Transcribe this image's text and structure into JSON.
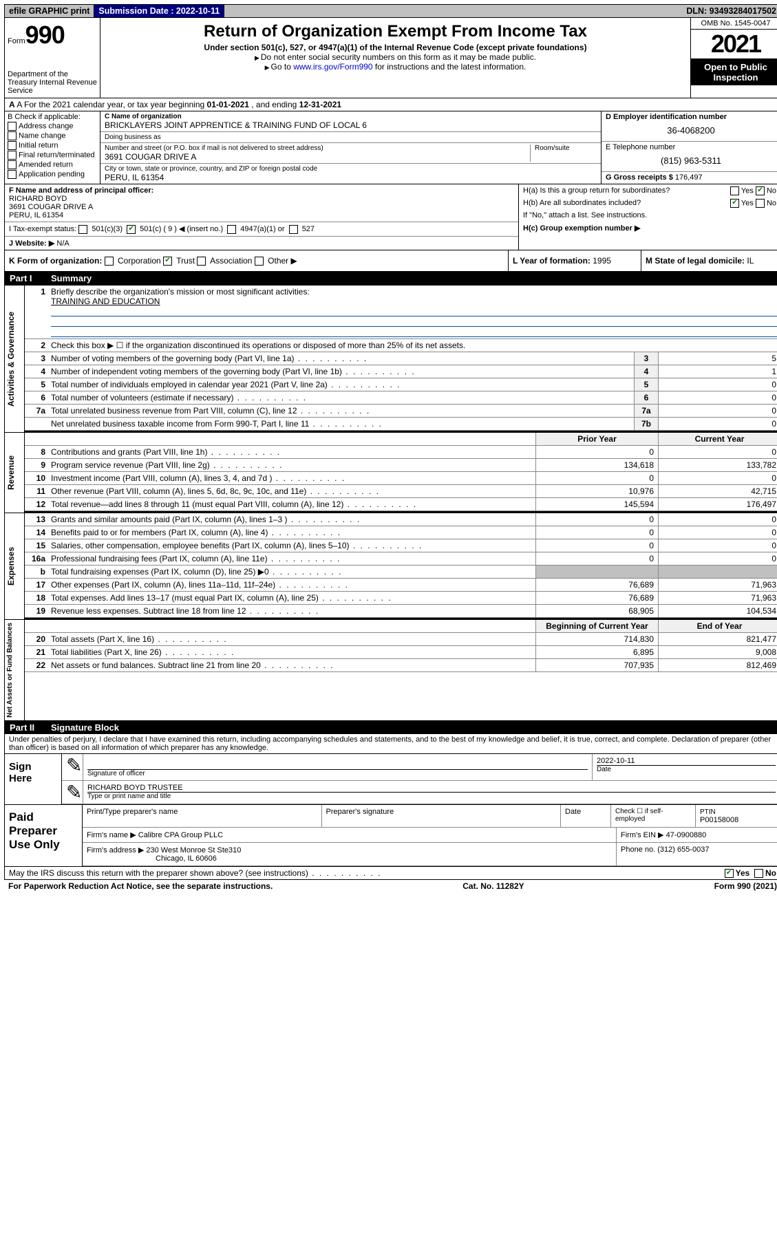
{
  "topbar": {
    "efile": "efile GRAPHIC print",
    "submission_label": "Submission Date : ",
    "submission_date": "2022-10-11",
    "dln_label": "DLN: ",
    "dln": "93493284017502"
  },
  "header": {
    "form_prefix": "Form",
    "form_number": "990",
    "dept": "Department of the Treasury Internal Revenue Service",
    "title": "Return of Organization Exempt From Income Tax",
    "subtitle": "Under section 501(c), 527, or 4947(a)(1) of the Internal Revenue Code (except private foundations)",
    "instr1": "Do not enter social security numbers on this form as it may be made public.",
    "instr2_pre": "Go to ",
    "instr2_link": "www.irs.gov/Form990",
    "instr2_post": " for instructions and the latest information.",
    "omb": "OMB No. 1545-0047",
    "year": "2021",
    "open": "Open to Public Inspection"
  },
  "row_a": {
    "prefix": "A For the 2021 calendar year, or tax year beginning ",
    "begin": "01-01-2021",
    "mid": " , and ending ",
    "end": "12-31-2021"
  },
  "col_b": {
    "label": "B Check if applicable:",
    "items": [
      "Address change",
      "Name change",
      "Initial return",
      "Final return/terminated",
      "Amended return",
      "Application pending"
    ]
  },
  "col_c": {
    "name_label": "C Name of organization",
    "name": "BRICKLAYERS JOINT APPRENTICE & TRAINING FUND OF LOCAL 6",
    "dba_label": "Doing business as",
    "dba": "",
    "street_label": "Number and street (or P.O. box if mail is not delivered to street address)",
    "room_label": "Room/suite",
    "street": "3691 COUGAR DRIVE A",
    "city_label": "City or town, state or province, country, and ZIP or foreign postal code",
    "city": "PERU, IL  61354"
  },
  "col_d": {
    "ein_label": "D Employer identification number",
    "ein": "36-4068200",
    "tel_label": "E Telephone number",
    "tel": "(815) 963-5311",
    "gross_label": "G Gross receipts $ ",
    "gross": "176,497"
  },
  "section_f": {
    "label": "F Name and address of principal officer:",
    "name": "RICHARD BOYD",
    "street": "3691 COUGAR DRIVE A",
    "city": "PERU, IL  61354"
  },
  "section_h": {
    "ha": "H(a)  Is this a group return for subordinates?",
    "ha_yes": "Yes",
    "ha_no": "No",
    "hb": "H(b)  Are all subordinates included?",
    "hb_yes": "Yes",
    "hb_no": "No",
    "hb_note": "If \"No,\" attach a list. See instructions.",
    "hc": "H(c)  Group exemption number ▶"
  },
  "row_i": {
    "label": "I   Tax-exempt status:",
    "opt1": "501(c)(3)",
    "opt2": "501(c) ( 9 ) ◀ (insert no.)",
    "opt3": "4947(a)(1) or",
    "opt4": "527"
  },
  "row_j": {
    "label": "J   Website: ▶",
    "val": "N/A"
  },
  "row_k": {
    "label": "K Form of organization:",
    "o1": "Corporation",
    "o2": "Trust",
    "o3": "Association",
    "o4": "Other ▶"
  },
  "row_l": {
    "label": "L Year of formation: ",
    "val": "1995"
  },
  "row_m": {
    "label": "M State of legal domicile: ",
    "val": "IL"
  },
  "part1": {
    "num": "Part I",
    "title": "Summary"
  },
  "mission": {
    "q": "Briefly describe the organization's mission or most significant activities:",
    "a": "TRAINING AND EDUCATION"
  },
  "line2": "Check this box ▶ ☐  if the organization discontinued its operations or disposed of more than 25% of its net assets.",
  "governance": [
    {
      "n": "3",
      "d": "Number of voting members of the governing body (Part VI, line 1a)",
      "b": "3",
      "v": "5"
    },
    {
      "n": "4",
      "d": "Number of independent voting members of the governing body (Part VI, line 1b)",
      "b": "4",
      "v": "1"
    },
    {
      "n": "5",
      "d": "Total number of individuals employed in calendar year 2021 (Part V, line 2a)",
      "b": "5",
      "v": "0"
    },
    {
      "n": "6",
      "d": "Total number of volunteers (estimate if necessary)",
      "b": "6",
      "v": "0"
    },
    {
      "n": "7a",
      "d": "Total unrelated business revenue from Part VIII, column (C), line 12",
      "b": "7a",
      "v": "0"
    },
    {
      "n": "",
      "d": "Net unrelated business taxable income from Form 990-T, Part I, line 11",
      "b": "7b",
      "v": "0"
    }
  ],
  "col_headers": {
    "prior": "Prior Year",
    "current": "Current Year",
    "begin": "Beginning of Current Year",
    "end": "End of Year"
  },
  "revenue": [
    {
      "n": "8",
      "d": "Contributions and grants (Part VIII, line 1h)",
      "p": "0",
      "c": "0"
    },
    {
      "n": "9",
      "d": "Program service revenue (Part VIII, line 2g)",
      "p": "134,618",
      "c": "133,782"
    },
    {
      "n": "10",
      "d": "Investment income (Part VIII, column (A), lines 3, 4, and 7d )",
      "p": "0",
      "c": "0"
    },
    {
      "n": "11",
      "d": "Other revenue (Part VIII, column (A), lines 5, 6d, 8c, 9c, 10c, and 11e)",
      "p": "10,976",
      "c": "42,715"
    },
    {
      "n": "12",
      "d": "Total revenue—add lines 8 through 11 (must equal Part VIII, column (A), line 12)",
      "p": "145,594",
      "c": "176,497"
    }
  ],
  "expenses": [
    {
      "n": "13",
      "d": "Grants and similar amounts paid (Part IX, column (A), lines 1–3 )",
      "p": "0",
      "c": "0"
    },
    {
      "n": "14",
      "d": "Benefits paid to or for members (Part IX, column (A), line 4)",
      "p": "0",
      "c": "0"
    },
    {
      "n": "15",
      "d": "Salaries, other compensation, employee benefits (Part IX, column (A), lines 5–10)",
      "p": "0",
      "c": "0"
    },
    {
      "n": "16a",
      "d": "Professional fundraising fees (Part IX, column (A), line 11e)",
      "p": "0",
      "c": "0"
    },
    {
      "n": "b",
      "d": "Total fundraising expenses (Part IX, column (D), line 25) ▶0",
      "p": "",
      "c": "",
      "shaded": true
    },
    {
      "n": "17",
      "d": "Other expenses (Part IX, column (A), lines 11a–11d, 11f–24e)",
      "p": "76,689",
      "c": "71,963"
    },
    {
      "n": "18",
      "d": "Total expenses. Add lines 13–17 (must equal Part IX, column (A), line 25)",
      "p": "76,689",
      "c": "71,963"
    },
    {
      "n": "19",
      "d": "Revenue less expenses. Subtract line 18 from line 12",
      "p": "68,905",
      "c": "104,534"
    }
  ],
  "netassets": [
    {
      "n": "20",
      "d": "Total assets (Part X, line 16)",
      "p": "714,830",
      "c": "821,477"
    },
    {
      "n": "21",
      "d": "Total liabilities (Part X, line 26)",
      "p": "6,895",
      "c": "9,008"
    },
    {
      "n": "22",
      "d": "Net assets or fund balances. Subtract line 21 from line 20",
      "p": "707,935",
      "c": "812,469"
    }
  ],
  "part2": {
    "num": "Part II",
    "title": "Signature Block"
  },
  "perjury": "Under penalties of perjury, I declare that I have examined this return, including accompanying schedules and statements, and to the best of my knowledge and belief, it is true, correct, and complete. Declaration of preparer (other than officer) is based on all information of which preparer has any knowledge.",
  "sign": {
    "here": "Sign Here",
    "sig_label": "Signature of officer",
    "date_label": "Date",
    "date": "2022-10-11",
    "name_label": "Type or print name and title",
    "name": "RICHARD BOYD TRUSTEE"
  },
  "prep": {
    "label": "Paid Preparer Use Only",
    "h1": "Print/Type preparer's name",
    "h2": "Preparer's signature",
    "h3": "Date",
    "h4_pre": "Check ☐ if self-employed",
    "h5_label": "PTIN",
    "h5": "P00158008",
    "firm_label": "Firm's name    ▶",
    "firm": "Calibre CPA Group PLLC",
    "ein_label": "Firm's EIN ▶",
    "ein": "47-0900880",
    "addr_label": "Firm's address ▶",
    "addr1": "230 West Monroe St Ste310",
    "addr2": "Chicago, IL  60606",
    "phone_label": "Phone no. ",
    "phone": "(312) 655-0037"
  },
  "footer": {
    "discuss": "May the IRS discuss this return with the preparer shown above? (see instructions)",
    "yes": "Yes",
    "no": "No",
    "paperwork": "For Paperwork Reduction Act Notice, see the separate instructions.",
    "cat": "Cat. No. 11282Y",
    "form": "Form 990 (2021)"
  },
  "vert": {
    "gov": "Activities & Governance",
    "rev": "Revenue",
    "exp": "Expenses",
    "net": "Net Assets or Fund Balances"
  }
}
